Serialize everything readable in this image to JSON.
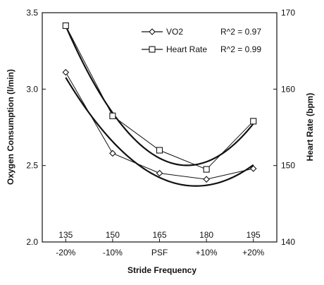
{
  "chart_data": {
    "type": "line",
    "x_positions": [
      1,
      2,
      3,
      4,
      5
    ],
    "x_tick_labels": [
      "-20%",
      "-10%",
      "PSF",
      "+10%",
      "+20%"
    ],
    "x_secondary_tick_labels": [
      "135",
      "150",
      "165",
      "180",
      "195"
    ],
    "xlabel": "Stride Frequency",
    "ylabel_left": "Oxygen Consumption (l/min)",
    "ylabel_right": "Heart Rate (bpm)",
    "ylim_left": [
      2.0,
      3.5
    ],
    "ylim_right": [
      140,
      170
    ],
    "y_ticks_left": [
      "2.0",
      "2.5",
      "3.0",
      "3.5"
    ],
    "y_ticks_right": [
      "140",
      "150",
      "160",
      "170"
    ],
    "grid": false,
    "legend_position": "top-right",
    "series": [
      {
        "name": "VO2",
        "axis": "left",
        "marker": "diamond",
        "values": [
          3.11,
          2.58,
          2.45,
          2.41,
          2.48
        ],
        "r_squared_label": "R^2 = 0.97"
      },
      {
        "name": "Heart Rate",
        "axis": "right",
        "marker": "square",
        "values": [
          168.3,
          156.5,
          152.0,
          149.5,
          155.8
        ],
        "r_squared_label": "R^2 = 0.99"
      }
    ]
  }
}
